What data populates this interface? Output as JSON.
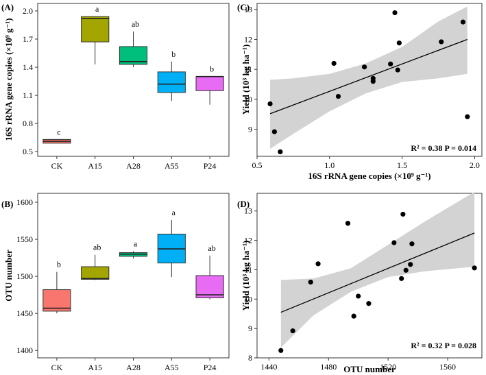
{
  "chart_data": [
    {
      "panel": "(A)",
      "type": "box",
      "ylabel": "16S rRNA gene copies (×10⁹ g⁻¹)",
      "ylim": [
        0.45,
        2.08
      ],
      "yticks": [
        "0.5",
        "0.8",
        "1.1",
        "1.4",
        "1.7",
        "2.0"
      ],
      "categories": [
        "CK",
        "A15",
        "A28",
        "A55",
        "P24"
      ],
      "boxes": [
        {
          "name": "CK",
          "min": 0.59,
          "q1": 0.59,
          "median": 0.61,
          "q3": 0.63,
          "max": 0.63,
          "color": "#F8766D",
          "letter": "c"
        },
        {
          "name": "A15",
          "min": 1.43,
          "q1": 1.67,
          "median": 1.92,
          "q3": 1.94,
          "max": 1.94,
          "color": "#A3A500",
          "letter": "a"
        },
        {
          "name": "A28",
          "min": 1.4,
          "q1": 1.43,
          "median": 1.46,
          "q3": 1.62,
          "max": 1.78,
          "color": "#00BF7D",
          "letter": "ab"
        },
        {
          "name": "A55",
          "min": 1.04,
          "q1": 1.13,
          "median": 1.22,
          "q3": 1.35,
          "max": 1.46,
          "color": "#00B0F6",
          "letter": "b"
        },
        {
          "name": "P24",
          "min": 1.0,
          "q1": 1.15,
          "median": 1.3,
          "q3": 1.3,
          "max": 1.3,
          "color": "#E76BF3",
          "letter": "b"
        }
      ]
    },
    {
      "panel": "(B)",
      "type": "box",
      "ylabel": "OTU number",
      "ylim": [
        1390,
        1612
      ],
      "yticks": [
        "1400",
        "1450",
        "1500",
        "1550",
        "1600"
      ],
      "categories": [
        "CK",
        "A15",
        "A28",
        "A55",
        "P24"
      ],
      "boxes": [
        {
          "name": "CK",
          "min": 1450,
          "q1": 1453,
          "median": 1457,
          "q3": 1482,
          "max": 1506,
          "color": "#F8766D",
          "letter": "b"
        },
        {
          "name": "A15",
          "min": 1495,
          "q1": 1496,
          "median": 1497,
          "q3": 1513,
          "max": 1529,
          "color": "#A3A500",
          "letter": "ab"
        },
        {
          "name": "A28",
          "min": 1524,
          "q1": 1527,
          "median": 1530,
          "q3": 1532,
          "max": 1534,
          "color": "#00BF7D",
          "letter": "a"
        },
        {
          "name": "A55",
          "min": 1499,
          "q1": 1518,
          "median": 1537,
          "q3": 1557,
          "max": 1576,
          "color": "#00B0F6",
          "letter": "a"
        },
        {
          "name": "P24",
          "min": 1469,
          "q1": 1471,
          "median": 1475,
          "q3": 1501,
          "max": 1528,
          "color": "#E76BF3",
          "letter": "ab"
        }
      ]
    },
    {
      "panel": "(C)",
      "type": "scatter",
      "xlabel": "16S rRNA gene copies (×10⁹ g⁻¹)",
      "ylabel": "Yield (10³ kg ha⁻¹)",
      "xlim": [
        0.5,
        2.05
      ],
      "ylim": [
        8.1,
        13.2
      ],
      "xticks": [
        "0.5",
        "1.0",
        "1.5",
        "2.0"
      ],
      "yticks": [
        "9",
        "10",
        "11",
        "12",
        "13"
      ],
      "x": [
        0.59,
        0.62,
        0.66,
        1.03,
        1.06,
        1.24,
        1.3,
        1.3,
        1.42,
        1.45,
        1.47,
        1.48,
        1.77,
        1.92,
        1.95
      ],
      "y": [
        9.85,
        8.92,
        8.25,
        11.2,
        10.1,
        11.08,
        10.7,
        10.6,
        11.18,
        12.89,
        10.98,
        11.88,
        11.92,
        12.58,
        9.42
      ],
      "fit": {
        "x": [
          0.59,
          1.95
        ],
        "y": [
          9.52,
          12.0
        ]
      },
      "ci_band": {
        "x": [
          0.59,
          0.75,
          1.0,
          1.25,
          1.5,
          1.75,
          1.95
        ],
        "lower": [
          8.35,
          8.85,
          9.6,
          10.2,
          10.58,
          10.7,
          10.85
        ],
        "upper": [
          10.65,
          10.7,
          10.85,
          11.2,
          11.75,
          12.6,
          13.1
        ]
      },
      "annotation": "R² = 0.38   P = 0.014"
    },
    {
      "panel": "(D)",
      "type": "scatter",
      "xlabel": "OTU number",
      "ylabel": "Yield (10³ kg ha⁻¹)",
      "xlim": [
        1432,
        1583
      ],
      "ylim": [
        8.0,
        13.6
      ],
      "xticks": [
        "1440",
        "1480",
        "1520",
        "1560"
      ],
      "yticks": [
        "8",
        "9",
        "10",
        "11",
        "12",
        "13"
      ],
      "x": [
        1448,
        1456,
        1468,
        1473,
        1493,
        1497,
        1500,
        1507,
        1524,
        1529,
        1530,
        1532,
        1535,
        1536,
        1578
      ],
      "y": [
        8.25,
        8.92,
        10.58,
        11.2,
        12.58,
        9.42,
        10.1,
        9.85,
        11.92,
        10.7,
        12.89,
        10.98,
        11.18,
        11.88,
        11.06
      ],
      "fit": {
        "x": [
          1448,
          1578
        ],
        "y": [
          9.55,
          12.25
        ]
      },
      "ci_band": {
        "x": [
          1448,
          1470,
          1495,
          1520,
          1545,
          1578
        ],
        "lower": [
          8.35,
          9.45,
          10.25,
          10.75,
          10.95,
          11.1
        ],
        "upper": [
          10.65,
          10.7,
          11.05,
          11.85,
          12.65,
          13.65
        ]
      },
      "annotation": "R² = 0.32   P = 0.028"
    }
  ]
}
